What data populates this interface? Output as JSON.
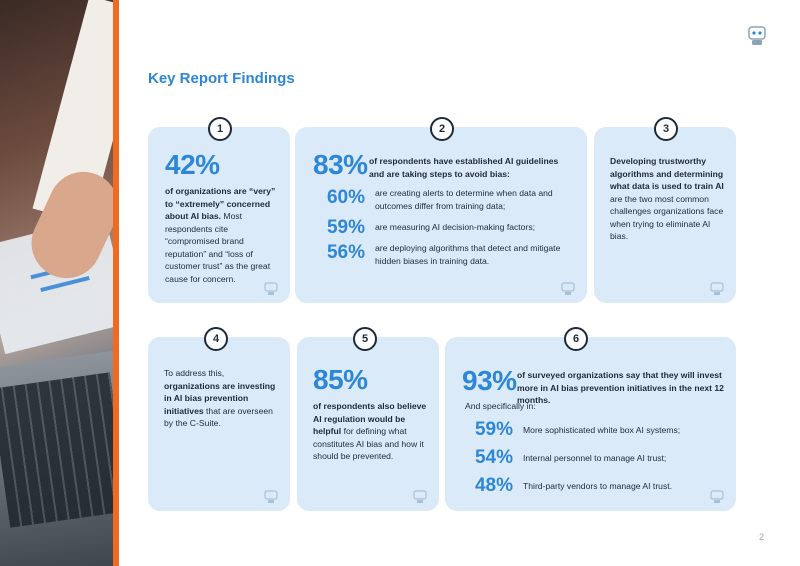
{
  "page": {
    "title": "Key Report Findings",
    "page_number": "2"
  },
  "cards": {
    "c1": {
      "number": "1",
      "stat": "42%",
      "bold": "of organizations are “very” to “extremely” concerned about AI bias.",
      "text": "Most respondents cite “compromised brand reputation” and “loss of customer trust” as the great cause for concern."
    },
    "c2": {
      "number": "2",
      "stat": "83%",
      "lead": "of respondents have established AI guidelines and are taking steps to avoid bias:",
      "items": [
        {
          "pct": "60%",
          "text": "are creating alerts to determine when data and outcomes differ from training data;"
        },
        {
          "pct": "59%",
          "text": "are measuring AI decision-making factors;"
        },
        {
          "pct": "56%",
          "text": "are deploying algorithms that detect and mitigate hidden biases in training data."
        }
      ]
    },
    "c3": {
      "number": "3",
      "bold": "Developing trustworthy algorithms and determining what data is used to train AI",
      "text": "are the two most common challenges organizations face when trying to eliminate AI bias."
    },
    "c4": {
      "number": "4",
      "pre": "To address this,",
      "bold": "organizations are investing in AI bias prevention initiatives",
      "text": "that are overseen by the C-Suite."
    },
    "c5": {
      "number": "5",
      "stat": "85%",
      "bold": "of respondents also believe AI regulation would be helpful",
      "text": "for defining what constitutes AI bias and how it should be prevented."
    },
    "c6": {
      "number": "6",
      "stat": "93%",
      "lead": "of surveyed organizations say that they will invest more in AI bias prevention initiatives in the next 12 months.",
      "sub": "And specifically in:",
      "items": [
        {
          "pct": "59%",
          "text": "More sophisticated white box AI systems;"
        },
        {
          "pct": "54%",
          "text": "Internal personnel to manage AI trust;"
        },
        {
          "pct": "48%",
          "text": "Third-party vendors to manage AI trust."
        }
      ]
    }
  },
  "colors": {
    "accent": "#f26a21",
    "brand_blue": "#2d86d6",
    "card_bg": "#dbeaf8"
  },
  "icons": {
    "logo": "robot-icon",
    "card_footer": "robot-icon"
  }
}
